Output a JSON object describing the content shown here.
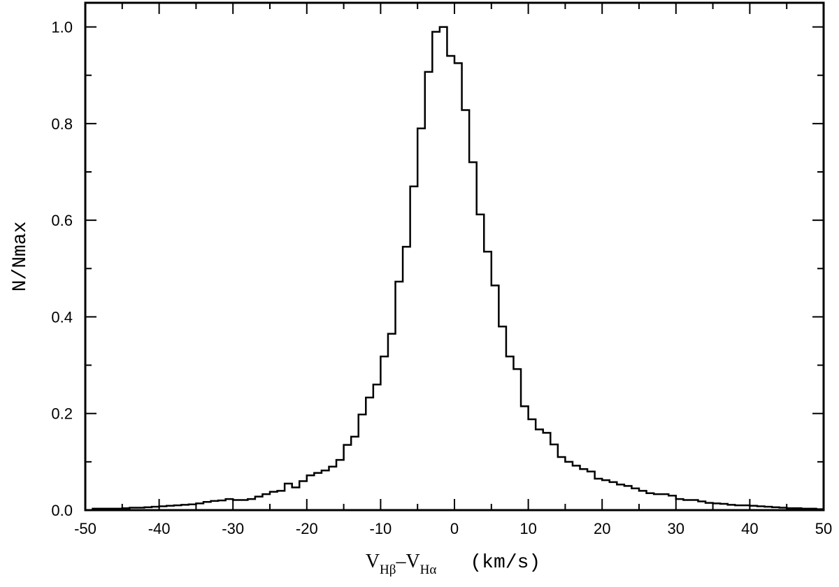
{
  "chart_data": {
    "type": "histogram",
    "title": "",
    "xlabel": {
      "v1": "V",
      "sub1": "Hβ",
      "dash": "–",
      "v2": "V",
      "sub2": "Hα",
      "units": "(km/s)"
    },
    "ylabel": "N/Nmax",
    "xlim": [
      -50,
      50
    ],
    "ylim": [
      0,
      1.05
    ],
    "bin_width": 1,
    "bins_start": -50,
    "x_ticks": [
      "-50",
      "-40",
      "-30",
      "-20",
      "-10",
      "0",
      "10",
      "20",
      "30",
      "40",
      "50"
    ],
    "y_ticks": [
      "0.0",
      "0.2",
      "0.4",
      "0.6",
      "0.8",
      "1.0"
    ],
    "grid": false,
    "values": [
      0.0,
      0.003,
      0.003,
      0.003,
      0.003,
      0.004,
      0.005,
      0.005,
      0.006,
      0.007,
      0.008,
      0.009,
      0.01,
      0.011,
      0.012,
      0.014,
      0.017,
      0.019,
      0.02,
      0.023,
      0.021,
      0.021,
      0.023,
      0.028,
      0.033,
      0.038,
      0.04,
      0.055,
      0.047,
      0.06,
      0.072,
      0.077,
      0.082,
      0.09,
      0.104,
      0.135,
      0.152,
      0.198,
      0.233,
      0.26,
      0.318,
      0.365,
      0.473,
      0.545,
      0.67,
      0.79,
      0.907,
      0.99,
      1.0,
      0.94,
      0.925,
      0.828,
      0.72,
      0.612,
      0.535,
      0.465,
      0.38,
      0.318,
      0.292,
      0.215,
      0.188,
      0.167,
      0.16,
      0.136,
      0.11,
      0.1,
      0.092,
      0.085,
      0.08,
      0.065,
      0.062,
      0.058,
      0.053,
      0.05,
      0.045,
      0.04,
      0.035,
      0.033,
      0.033,
      0.03,
      0.023,
      0.021,
      0.021,
      0.018,
      0.015,
      0.014,
      0.013,
      0.011,
      0.01,
      0.01,
      0.009,
      0.008,
      0.007,
      0.006,
      0.005,
      0.004,
      0.004,
      0.003,
      0.003,
      0.002
    ]
  }
}
